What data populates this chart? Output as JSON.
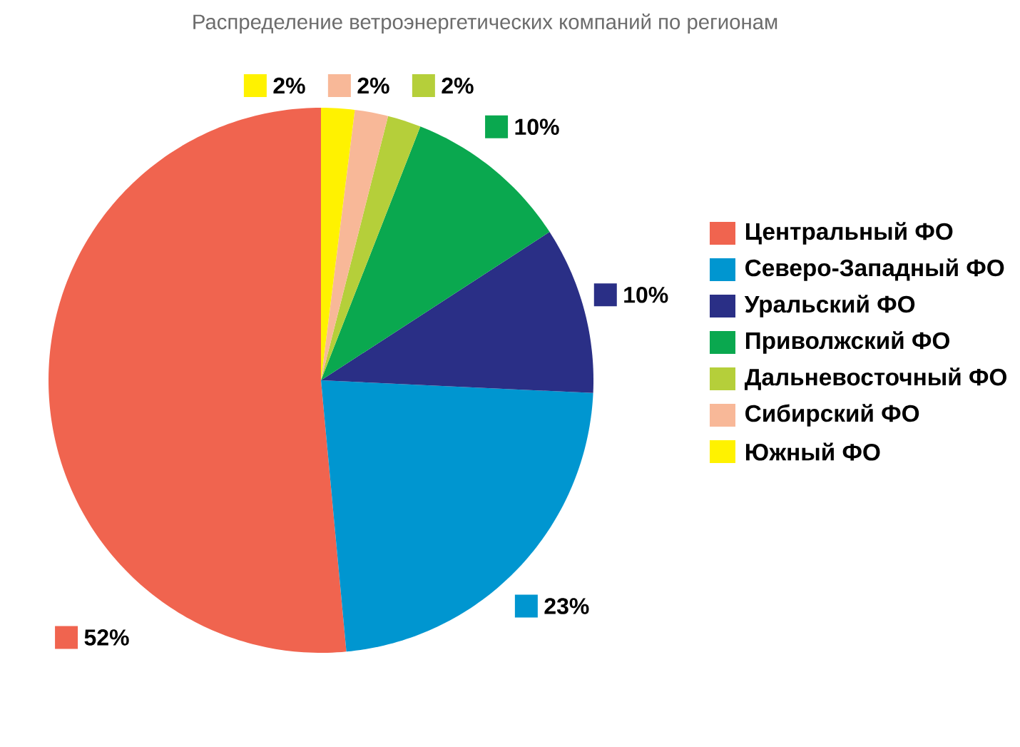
{
  "chart_data": {
    "type": "pie",
    "title": "Распределение ветроэнергетических компаний по регионам",
    "categories": [
      "Центральный ФО",
      "Северо-Западный ФО",
      "Уральский ФО",
      "Приволжский ФО",
      "Дальневосточный ФО",
      "Сибирский ФО",
      "Южный ФО"
    ],
    "values": [
      52,
      23,
      10,
      10,
      2,
      2,
      2
    ],
    "colors": [
      "#f0644f",
      "#0096d0",
      "#2a2f86",
      "#0aa84f",
      "#b5cf3a",
      "#f8b898",
      "#fff200"
    ],
    "value_labels": [
      "52%",
      "23%",
      "10%",
      "10%",
      "2%",
      "2%",
      "2%"
    ],
    "legend": "right"
  }
}
